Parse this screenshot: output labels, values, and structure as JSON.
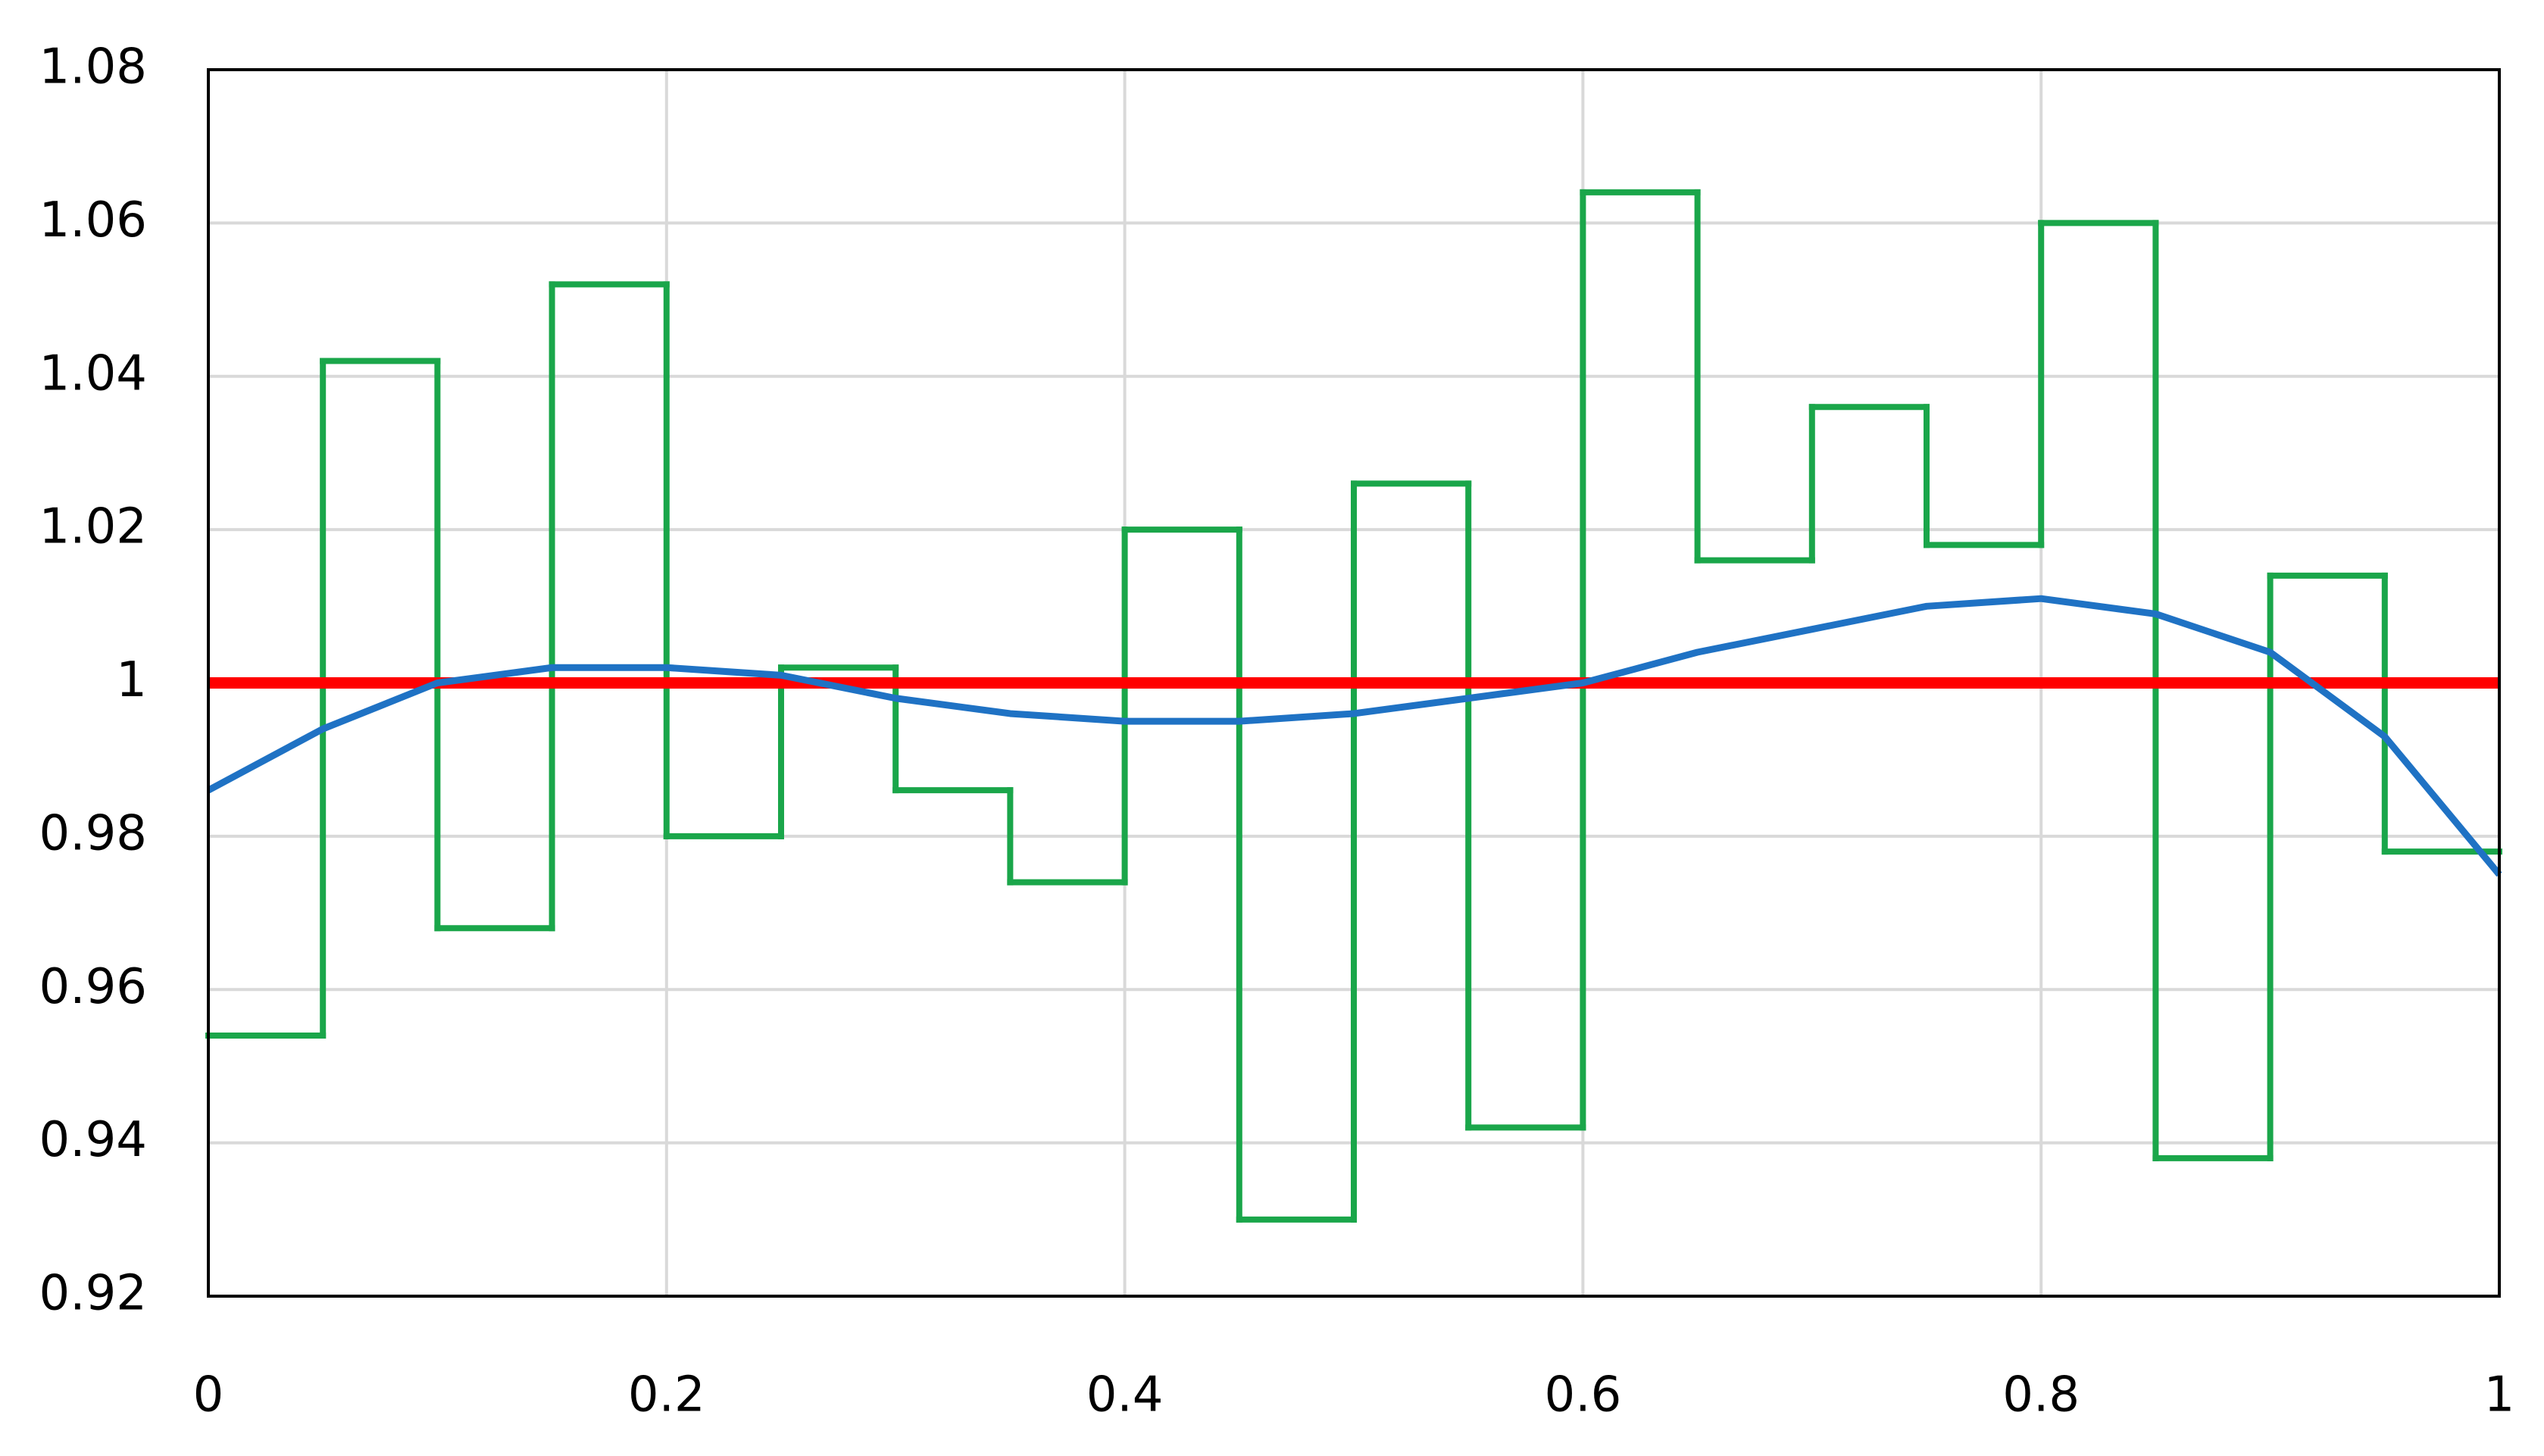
{
  "chart_data": {
    "type": "line",
    "xlim": [
      0,
      1
    ],
    "xticks": [
      0,
      0.2,
      0.4,
      0.6,
      0.8,
      1
    ],
    "ylim": [
      0.92,
      1.08
    ],
    "yticks": [
      0.92,
      0.94,
      0.96,
      0.98,
      1,
      1.02,
      1.04,
      1.06,
      1.08
    ],
    "grid": true,
    "series": [
      {
        "color": "#1aa64a",
        "bins": [
          0,
          0.05,
          0.1,
          0.15,
          0.2,
          0.25,
          0.3,
          0.35,
          0.4,
          0.45,
          0.5,
          0.55,
          0.6,
          0.65,
          0.7,
          0.75,
          0.8,
          0.85,
          0.9,
          0.95,
          1
        ],
        "values": [
          0.954,
          1.042,
          0.968,
          1.052,
          0.98,
          1.002,
          0.986,
          0.974,
          1.02,
          0.93,
          1.026,
          0.942,
          1.064,
          1.016,
          1.036,
          1.018,
          1.06,
          0.938,
          1.014,
          0.978
        ]
      },
      {
        "color": "#ff0000",
        "x": [
          0,
          1
        ],
        "values": [
          1,
          1
        ]
      },
      {
        "color": "#1f72c4",
        "x": [
          0,
          0.05,
          0.1,
          0.15,
          0.2,
          0.25,
          0.3,
          0.35,
          0.4,
          0.45,
          0.5,
          0.55,
          0.6,
          0.65,
          0.7,
          0.75,
          0.8,
          0.85,
          0.9,
          0.95,
          1
        ],
        "values": [
          0.986,
          0.994,
          1.0,
          1.002,
          1.002,
          1.001,
          0.998,
          0.996,
          0.995,
          0.995,
          0.996,
          0.998,
          1.0,
          1.004,
          1.007,
          1.01,
          1.011,
          1.009,
          1.004,
          0.993,
          0.975
        ]
      }
    ]
  }
}
